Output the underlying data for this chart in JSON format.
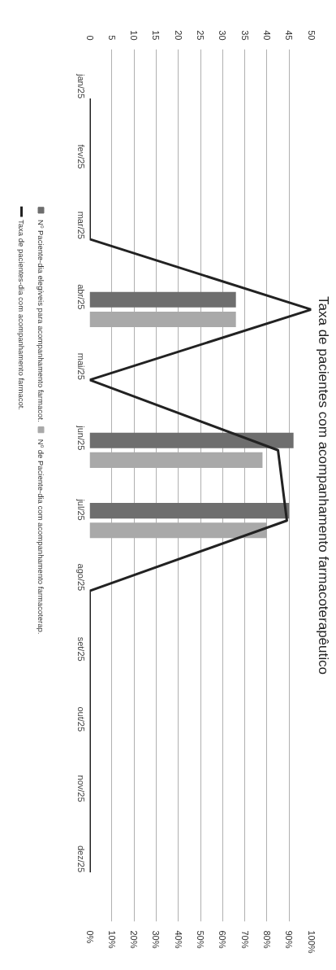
{
  "chart_data": {
    "type": "bar",
    "orientation": "horizontal",
    "title": "Taxa de pacientes com acompanhamento farmacoterapêutico",
    "categories": [
      "jan/25",
      "fev/25",
      "mar/25",
      "abr/25",
      "mai/25",
      "jun/25",
      "jul/25",
      "ago/25",
      "set/25",
      "out/25",
      "nov/25",
      "dez/25"
    ],
    "series": [
      {
        "name": "Nº Paciente-dia elegíveis para acompanhamento farmacot.",
        "color": "#6e6e6e",
        "values": [
          0,
          0,
          0,
          33,
          0,
          46,
          45,
          0,
          0,
          0,
          0,
          0
        ]
      },
      {
        "name": "Nº de Paciente-dia com acompanhamento farmacoterap.",
        "color": "#a9a9a9",
        "values": [
          0,
          0,
          0,
          33,
          0,
          39,
          40,
          0,
          0,
          0,
          0,
          0
        ]
      },
      {
        "name": "Taxa de pacientes-dia com acompanhamento farmacot.",
        "type": "line",
        "axis": "x2",
        "color": "#222222",
        "values": [
          0,
          0,
          0,
          100,
          0,
          85,
          89,
          0,
          0,
          0,
          0,
          0
        ]
      }
    ],
    "xlim": [
      0,
      50
    ],
    "xticks": [
      0,
      5,
      10,
      15,
      20,
      25,
      30,
      35,
      40,
      45,
      50
    ],
    "x2lim": [
      0,
      100
    ],
    "x2ticks": [
      {
        "value": 0,
        "label": "0%"
      },
      {
        "value": 10,
        "label": "10%"
      },
      {
        "value": 20,
        "label": "20%"
      },
      {
        "value": 30,
        "label": "30%"
      },
      {
        "value": 40,
        "label": "40%"
      },
      {
        "value": 50,
        "label": "50%"
      },
      {
        "value": 60,
        "label": "60%"
      },
      {
        "value": 70,
        "label": "70%"
      },
      {
        "value": 80,
        "label": "80%"
      },
      {
        "value": 90,
        "label": "90%"
      },
      {
        "value": 100,
        "label": "100%"
      }
    ],
    "grid": "x",
    "legend": "left",
    "line_style": "solid",
    "marker": "none"
  }
}
